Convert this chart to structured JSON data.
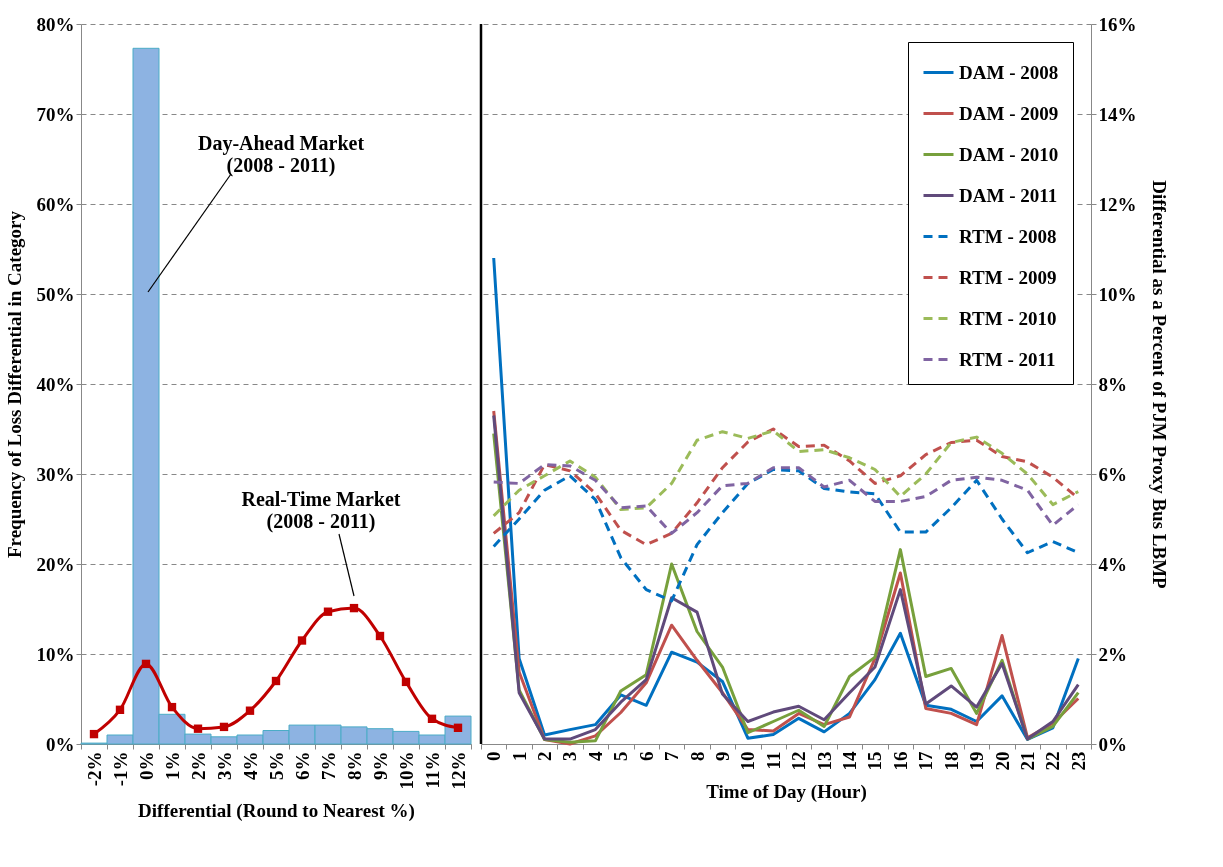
{
  "chart_data": [
    {
      "type": "bar",
      "xlabel": "Differential (Round to Nearest %)",
      "ylabel": "Frequency of Loss Differential in Category",
      "categories": [
        "-2%",
        "-1%",
        "0%",
        "1%",
        "2%",
        "3%",
        "4%",
        "5%",
        "6%",
        "7%",
        "8%",
        "9%",
        "10%",
        "11%",
        "12%"
      ],
      "series": [
        {
          "type": "bar",
          "color": "#8db3e2",
          "values": [
            0.1,
            1.0,
            77.3,
            3.3,
            1.1,
            0.8,
            1.0,
            1.5,
            2.1,
            2.1,
            1.9,
            1.7,
            1.4,
            1.0,
            3.1
          ]
        },
        {
          "type": "line",
          "color": "#c00000",
          "marker": "square",
          "values": [
            1.1,
            3.8,
            8.9,
            4.1,
            1.7,
            1.9,
            3.7,
            7.0,
            11.5,
            14.7,
            15.1,
            12.0,
            6.9,
            2.8,
            1.8
          ]
        }
      ],
      "ylim": [
        0,
        80
      ],
      "yticks": [
        {
          "value": 0,
          "label": "0%"
        },
        {
          "value": 10,
          "label": "10%"
        },
        {
          "value": 20,
          "label": "20%"
        },
        {
          "value": 30,
          "label": "30%"
        },
        {
          "value": 40,
          "label": "40%"
        },
        {
          "value": 50,
          "label": "50%"
        },
        {
          "value": 60,
          "label": "60%"
        },
        {
          "value": 70,
          "label": "70%"
        },
        {
          "value": 80,
          "label": "80%"
        }
      ],
      "grid": "y",
      "annotations": [
        "Day-Ahead Market\n(2008 - 2011)",
        "Real-Time Market\n(2008 - 2011)"
      ]
    },
    {
      "type": "line",
      "xlabel": "Time of Day (Hour)",
      "y2label": "Differential as a Percent of PJM Proxy Bus LBMP",
      "categories": [
        "0",
        "1",
        "2",
        "3",
        "4",
        "5",
        "6",
        "7",
        "8",
        "9",
        "10",
        "11",
        "12",
        "13",
        "14",
        "15",
        "16",
        "17",
        "18",
        "19",
        "20",
        "21",
        "22",
        "23"
      ],
      "series": [
        {
          "name": "DAM - 2008",
          "axis": "y2",
          "color": "#0070c0",
          "line_style": "solid",
          "values": [
            10.8,
            1.9,
            0.2,
            0.32,
            0.43,
            1.09,
            0.86,
            2.04,
            1.82,
            1.39,
            0.13,
            0.21,
            0.57,
            0.27,
            0.68,
            1.43,
            2.46,
            0.86,
            0.77,
            0.5,
            1.07,
            0.1,
            0.36,
            1.9
          ]
        },
        {
          "name": "DAM - 2009",
          "axis": "y2",
          "color": "#c0504d",
          "line_style": "solid",
          "values": [
            7.4,
            1.6,
            0.1,
            0.0,
            0.18,
            0.7,
            1.36,
            2.64,
            1.86,
            1.14,
            0.32,
            0.29,
            0.68,
            0.43,
            0.6,
            1.9,
            3.8,
            0.79,
            0.68,
            0.43,
            2.41,
            0.14,
            0.46,
            1.01
          ]
        },
        {
          "name": "DAM - 2010",
          "axis": "y2",
          "color": "#77a03c",
          "line_style": "solid",
          "values": [
            6.9,
            1.2,
            0.1,
            0.04,
            0.07,
            1.18,
            1.54,
            4.0,
            2.5,
            1.71,
            0.25,
            0.5,
            0.75,
            0.39,
            1.5,
            1.93,
            4.32,
            1.5,
            1.68,
            0.68,
            1.86,
            0.11,
            0.39,
            1.14
          ]
        },
        {
          "name": "DAM - 2011",
          "axis": "y2",
          "color": "#604a7b",
          "line_style": "solid",
          "values": [
            7.3,
            1.14,
            0.11,
            0.11,
            0.32,
            0.93,
            1.43,
            3.25,
            2.93,
            1.11,
            0.5,
            0.71,
            0.84,
            0.54,
            1.14,
            1.71,
            3.43,
            0.89,
            1.29,
            0.82,
            1.79,
            0.11,
            0.5,
            1.32
          ]
        },
        {
          "name": "RTM - 2008",
          "axis": "y2",
          "color": "#0070c0",
          "line_style": "dashed",
          "values": [
            4.39,
            5.0,
            5.64,
            5.96,
            5.43,
            4.14,
            3.43,
            3.18,
            4.43,
            5.14,
            5.79,
            6.1,
            6.07,
            5.68,
            5.6,
            5.56,
            4.71,
            4.71,
            5.25,
            5.86,
            5.0,
            4.25,
            4.5,
            4.25
          ]
        },
        {
          "name": "RTM - 2009",
          "axis": "y2",
          "color": "#c0504d",
          "line_style": "dashed",
          "values": [
            4.68,
            5.14,
            6.21,
            6.07,
            5.57,
            4.75,
            4.43,
            4.68,
            5.36,
            6.14,
            6.71,
            7.0,
            6.61,
            6.64,
            6.29,
            5.79,
            5.96,
            6.43,
            6.7,
            6.75,
            6.39,
            6.27,
            5.93,
            5.46
          ]
        },
        {
          "name": "RTM - 2010",
          "axis": "y2",
          "color": "#9bbb59",
          "line_style": "dashed",
          "values": [
            5.07,
            5.64,
            5.96,
            6.29,
            5.93,
            5.21,
            5.25,
            5.79,
            6.75,
            6.94,
            6.79,
            6.96,
            6.5,
            6.54,
            6.36,
            6.1,
            5.5,
            6.0,
            6.7,
            6.82,
            6.46,
            6.0,
            5.32,
            5.61
          ]
        },
        {
          "name": "RTM - 2011",
          "axis": "y2",
          "color": "#8064a2",
          "line_style": "dashed",
          "values": [
            5.82,
            5.79,
            6.21,
            6.18,
            5.86,
            5.25,
            5.29,
            4.68,
            5.14,
            5.74,
            5.79,
            6.14,
            6.14,
            5.71,
            5.86,
            5.39,
            5.39,
            5.5,
            5.86,
            5.93,
            5.86,
            5.64,
            4.86,
            5.32
          ]
        }
      ],
      "y2lim": [
        0,
        16
      ],
      "y2ticks": [
        {
          "value": 0,
          "label": "0%"
        },
        {
          "value": 2,
          "label": "2%"
        },
        {
          "value": 4,
          "label": "4%"
        },
        {
          "value": 6,
          "label": "6%"
        },
        {
          "value": 8,
          "label": "8%"
        },
        {
          "value": 10,
          "label": "10%"
        },
        {
          "value": 12,
          "label": "12%"
        },
        {
          "value": 14,
          "label": "14%"
        },
        {
          "value": 16,
          "label": "16%"
        }
      ],
      "grid": "y",
      "legend": "top right"
    }
  ]
}
